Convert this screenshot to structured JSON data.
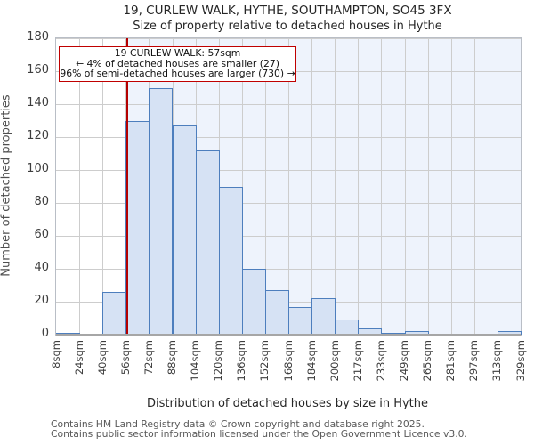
{
  "title": "19, CURLEW WALK, HYTHE, SOUTHAMPTON, SO45 3FX",
  "subtitle": "Size of property relative to detached houses in Hythe",
  "chart_data": {
    "type": "bar",
    "bin_edge_labels": [
      "8sqm",
      "24sqm",
      "40sqm",
      "56sqm",
      "72sqm",
      "88sqm",
      "104sqm",
      "120sqm",
      "136sqm",
      "152sqm",
      "168sqm",
      "184sqm",
      "200sqm",
      "217sqm",
      "233sqm",
      "249sqm",
      "265sqm",
      "281sqm",
      "297sqm",
      "313sqm",
      "329sqm"
    ],
    "bin_edges_sqm": [
      8,
      24,
      40,
      56,
      72,
      88,
      104,
      120,
      136,
      152,
      168,
      184,
      200,
      217,
      233,
      249,
      265,
      281,
      297,
      313,
      329
    ],
    "values": [
      1,
      0,
      26,
      130,
      150,
      127,
      112,
      90,
      40,
      27,
      17,
      22,
      9,
      4,
      1,
      2,
      0,
      0,
      0,
      2
    ],
    "ylabel": "Number of detached properties",
    "xlabel": "Distribution of detached houses by size in Hythe",
    "ylim": [
      0,
      180
    ],
    "ytick_step": 20,
    "grid": true,
    "marker": {
      "value_sqm": 57
    },
    "annotation": {
      "line1": "19 CURLEW WALK: 57sqm",
      "line2": "← 4% of detached houses are smaller (27)",
      "line3": "96% of semi-detached houses are larger (730) →"
    },
    "colors": {
      "bar_fill": "#d6e2f4",
      "bar_edge": "#4d7ebd",
      "marker_line": "#b40000",
      "annotation_border": "#c00000",
      "shade_right_of_marker": "#eef3fc",
      "gridline": "#cdcdcd"
    }
  },
  "footer": {
    "line1": "Contains HM Land Registry data © Crown copyright and database right 2025.",
    "line2": "Contains public sector information licensed under the Open Government Licence v3.0."
  }
}
